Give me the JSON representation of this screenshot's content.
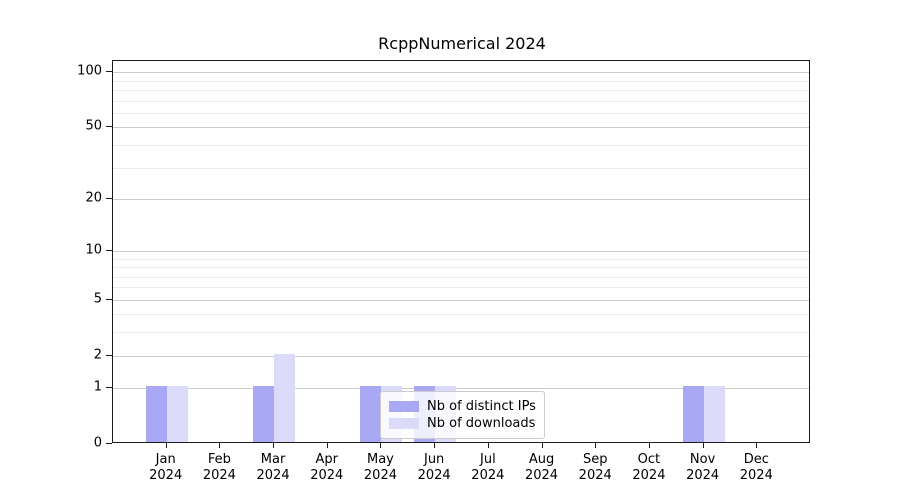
{
  "figure": {
    "title": "RcppNumerical 2024"
  },
  "chart_data": {
    "type": "bar",
    "title": "RcppNumerical 2024",
    "categories": [
      "Jan 2024",
      "Feb 2024",
      "Mar 2024",
      "Apr 2024",
      "May 2024",
      "Jun 2024",
      "Jul 2024",
      "Aug 2024",
      "Sep 2024",
      "Oct 2024",
      "Nov 2024",
      "Dec 2024"
    ],
    "series": [
      {
        "name": "Nb of distinct IPs",
        "color": "#a9a8f4",
        "values": [
          1,
          0,
          1,
          0,
          1,
          1,
          0,
          0,
          0,
          0,
          1,
          0
        ]
      },
      {
        "name": "Nb of downloads",
        "color": "#dbdaf8",
        "values": [
          1,
          0,
          2,
          0,
          1,
          1,
          0,
          0,
          0,
          0,
          1,
          0
        ]
      }
    ],
    "xlabel": "",
    "ylabel": "",
    "yscale": "log1p",
    "ylim": [
      0,
      113
    ],
    "yticks": [
      0,
      1,
      2,
      5,
      10,
      20,
      50,
      100
    ],
    "yticks_minor": [
      3,
      4,
      6,
      7,
      8,
      9,
      30,
      40,
      60,
      70,
      80,
      90
    ],
    "grid": true,
    "legend": {
      "position": "lower-center-inside",
      "labels": [
        "Nb of distinct IPs",
        "Nb of downloads"
      ]
    }
  }
}
